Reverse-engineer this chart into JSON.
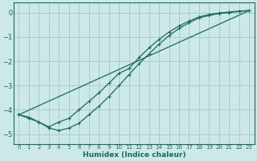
{
  "xlabel": "Humidex (Indice chaleur)",
  "bg_color": "#cce8e8",
  "grid_color": "#aacccc",
  "line_color": "#1a6b5a",
  "xlim": [
    -0.5,
    23.5
  ],
  "ylim": [
    -5.4,
    0.4
  ],
  "xticks": [
    0,
    1,
    2,
    3,
    4,
    5,
    6,
    7,
    8,
    9,
    10,
    11,
    12,
    13,
    14,
    15,
    16,
    17,
    18,
    19,
    20,
    21,
    22,
    23
  ],
  "yticks": [
    0,
    -1,
    -2,
    -3,
    -4,
    -5
  ],
  "curve1_x": [
    0,
    1,
    2,
    3,
    4,
    5,
    6,
    7,
    8,
    9,
    10,
    11,
    12,
    13,
    14,
    15,
    16,
    17,
    18,
    19,
    20,
    21,
    22,
    23
  ],
  "curve1_y": [
    -4.2,
    -4.35,
    -4.5,
    -4.75,
    -4.85,
    -4.75,
    -4.55,
    -4.2,
    -3.85,
    -3.45,
    -3.0,
    -2.55,
    -2.1,
    -1.7,
    -1.3,
    -0.95,
    -0.65,
    -0.42,
    -0.22,
    -0.12,
    -0.04,
    0.0,
    0.04,
    0.08
  ],
  "curve2_x": [
    0,
    1,
    2,
    3,
    4,
    5,
    6,
    7,
    8,
    9,
    10,
    11,
    12,
    13,
    14,
    15,
    16,
    17,
    18,
    19,
    20,
    21,
    22,
    23
  ],
  "curve2_y": [
    -4.2,
    -4.3,
    -4.5,
    -4.7,
    -4.5,
    -4.35,
    -4.0,
    -3.65,
    -3.3,
    -2.9,
    -2.5,
    -2.3,
    -1.85,
    -1.45,
    -1.1,
    -0.8,
    -0.55,
    -0.35,
    -0.18,
    -0.08,
    -0.02,
    0.02,
    0.06,
    0.08
  ],
  "curve3_x": [
    0,
    23
  ],
  "curve3_y": [
    -4.2,
    0.08
  ]
}
